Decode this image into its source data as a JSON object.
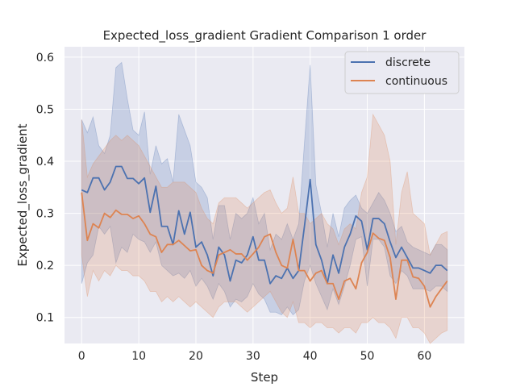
{
  "chart_data": {
    "type": "line",
    "title": "Expected_loss_gradient Gradient Comparison 1 order",
    "xlabel": "Step",
    "ylabel": "Expected_loss_gradient",
    "xlim": [
      -3,
      67
    ],
    "ylim": [
      0.05,
      0.62
    ],
    "xticks": [
      0,
      10,
      20,
      30,
      40,
      50,
      60
    ],
    "yticks": [
      0.1,
      0.2,
      0.3,
      0.4,
      0.5,
      0.6
    ],
    "grid": true,
    "legend_position": "top-right",
    "x": [
      0,
      1,
      2,
      3,
      4,
      5,
      6,
      7,
      8,
      9,
      10,
      11,
      12,
      13,
      14,
      15,
      16,
      17,
      18,
      19,
      20,
      21,
      22,
      23,
      24,
      25,
      26,
      27,
      28,
      29,
      30,
      31,
      32,
      33,
      34,
      35,
      36,
      37,
      38,
      39,
      40,
      41,
      42,
      43,
      44,
      45,
      46,
      47,
      48,
      49,
      50,
      51,
      52,
      53,
      54,
      55,
      56,
      57,
      58,
      59,
      60,
      61,
      62,
      63,
      64
    ],
    "series": [
      {
        "name": "discrete",
        "color": "#4c72b0",
        "values": [
          0.345,
          0.34,
          0.368,
          0.368,
          0.345,
          0.36,
          0.39,
          0.39,
          0.367,
          0.367,
          0.357,
          0.368,
          0.302,
          0.352,
          0.275,
          0.275,
          0.24,
          0.305,
          0.26,
          0.302,
          0.235,
          0.245,
          0.22,
          0.18,
          0.235,
          0.22,
          0.17,
          0.21,
          0.205,
          0.22,
          0.255,
          0.21,
          0.21,
          0.165,
          0.18,
          0.175,
          0.195,
          0.175,
          0.19,
          0.275,
          0.365,
          0.24,
          0.21,
          0.165,
          0.22,
          0.185,
          0.235,
          0.26,
          0.295,
          0.285,
          0.23,
          0.29,
          0.29,
          0.28,
          0.245,
          0.215,
          0.235,
          0.215,
          0.195,
          0.195,
          0.19,
          0.185,
          0.2,
          0.2,
          0.19
        ],
        "upper": [
          0.48,
          0.455,
          0.485,
          0.43,
          0.415,
          0.45,
          0.58,
          0.59,
          0.52,
          0.46,
          0.45,
          0.495,
          0.375,
          0.43,
          0.395,
          0.405,
          0.36,
          0.49,
          0.46,
          0.43,
          0.36,
          0.35,
          0.33,
          0.25,
          0.315,
          0.315,
          0.25,
          0.3,
          0.29,
          0.3,
          0.33,
          0.28,
          0.3,
          0.23,
          0.26,
          0.25,
          0.28,
          0.25,
          0.28,
          0.435,
          0.585,
          0.355,
          0.3,
          0.235,
          0.3,
          0.255,
          0.31,
          0.325,
          0.335,
          0.31,
          0.3,
          0.32,
          0.34,
          0.325,
          0.3,
          0.265,
          0.275,
          0.245,
          0.235,
          0.23,
          0.225,
          0.22,
          0.24,
          0.24,
          0.23
        ],
        "lower": [
          0.165,
          0.205,
          0.22,
          0.275,
          0.26,
          0.275,
          0.205,
          0.235,
          0.225,
          0.26,
          0.25,
          0.245,
          0.225,
          0.245,
          0.2,
          0.19,
          0.18,
          0.185,
          0.175,
          0.19,
          0.16,
          0.175,
          0.16,
          0.135,
          0.165,
          0.15,
          0.12,
          0.135,
          0.13,
          0.14,
          0.165,
          0.145,
          0.135,
          0.11,
          0.11,
          0.105,
          0.12,
          0.105,
          0.115,
          0.17,
          0.2,
          0.165,
          0.14,
          0.115,
          0.155,
          0.125,
          0.16,
          0.2,
          0.25,
          0.255,
          0.16,
          0.25,
          0.25,
          0.235,
          0.18,
          0.165,
          0.19,
          0.18,
          0.155,
          0.155,
          0.155,
          0.15,
          0.16,
          0.16,
          0.15
        ]
      },
      {
        "name": "continuous",
        "color": "#dd8452",
        "values": [
          0.34,
          0.248,
          0.28,
          0.272,
          0.3,
          0.292,
          0.306,
          0.298,
          0.298,
          0.29,
          0.295,
          0.28,
          0.26,
          0.255,
          0.225,
          0.24,
          0.24,
          0.248,
          0.238,
          0.228,
          0.23,
          0.2,
          0.19,
          0.185,
          0.22,
          0.225,
          0.23,
          0.222,
          0.222,
          0.21,
          0.222,
          0.235,
          0.255,
          0.26,
          0.225,
          0.2,
          0.195,
          0.25,
          0.19,
          0.19,
          0.17,
          0.185,
          0.19,
          0.165,
          0.165,
          0.135,
          0.17,
          0.175,
          0.155,
          0.205,
          0.225,
          0.262,
          0.252,
          0.248,
          0.215,
          0.135,
          0.21,
          0.21,
          0.178,
          0.175,
          0.16,
          0.12,
          0.14,
          0.155,
          0.17
        ],
        "upper": [
          0.48,
          0.37,
          0.395,
          0.41,
          0.425,
          0.44,
          0.45,
          0.44,
          0.45,
          0.44,
          0.43,
          0.41,
          0.39,
          0.37,
          0.35,
          0.35,
          0.36,
          0.36,
          0.36,
          0.35,
          0.34,
          0.31,
          0.29,
          0.28,
          0.32,
          0.33,
          0.33,
          0.33,
          0.32,
          0.31,
          0.32,
          0.33,
          0.34,
          0.345,
          0.32,
          0.3,
          0.31,
          0.37,
          0.3,
          0.3,
          0.28,
          0.29,
          0.3,
          0.28,
          0.27,
          0.24,
          0.27,
          0.28,
          0.27,
          0.34,
          0.37,
          0.49,
          0.47,
          0.45,
          0.4,
          0.24,
          0.34,
          0.38,
          0.3,
          0.29,
          0.28,
          0.22,
          0.24,
          0.26,
          0.265
        ],
        "lower": [
          0.22,
          0.14,
          0.19,
          0.17,
          0.19,
          0.18,
          0.2,
          0.19,
          0.19,
          0.18,
          0.18,
          0.17,
          0.15,
          0.15,
          0.13,
          0.14,
          0.13,
          0.14,
          0.13,
          0.12,
          0.13,
          0.12,
          0.11,
          0.1,
          0.12,
          0.13,
          0.13,
          0.13,
          0.12,
          0.11,
          0.12,
          0.13,
          0.14,
          0.15,
          0.13,
          0.11,
          0.1,
          0.13,
          0.09,
          0.09,
          0.08,
          0.09,
          0.09,
          0.08,
          0.08,
          0.07,
          0.08,
          0.08,
          0.07,
          0.09,
          0.09,
          0.1,
          0.09,
          0.09,
          0.08,
          0.06,
          0.1,
          0.1,
          0.08,
          0.08,
          0.07,
          0.05,
          0.06,
          0.07,
          0.075
        ]
      }
    ]
  }
}
